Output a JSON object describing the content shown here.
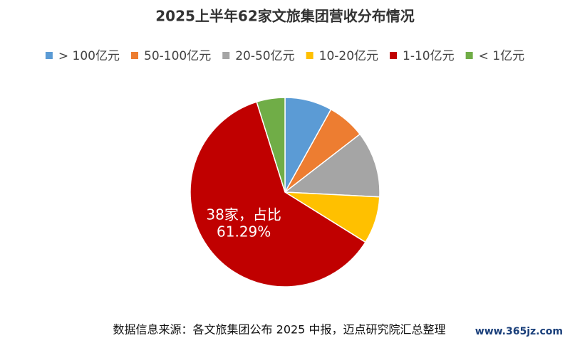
{
  "chart_data": {
    "type": "pie",
    "title": "2025上半年62家文旅集团营收分布情况",
    "categories": [
      "> 100亿元",
      "50-100亿元",
      "20-50亿元",
      "10-20亿元",
      "1-10亿元",
      "< 1亿元"
    ],
    "values": [
      5,
      4,
      7,
      5,
      38,
      3
    ],
    "value_labels": [
      null,
      null,
      null,
      null,
      [
        "38家，占比",
        "61.29%"
      ],
      null
    ],
    "colors": [
      "#5b9bd5",
      "#ed7d31",
      "#a5a5a5",
      "#ffc000",
      "#c00000",
      "#70ad47"
    ],
    "legend": "top",
    "source": "数据信息来源：各文旅集团公布 2025 中报，迈点研究院汇总整理",
    "watermark": "www.365jz.com"
  }
}
